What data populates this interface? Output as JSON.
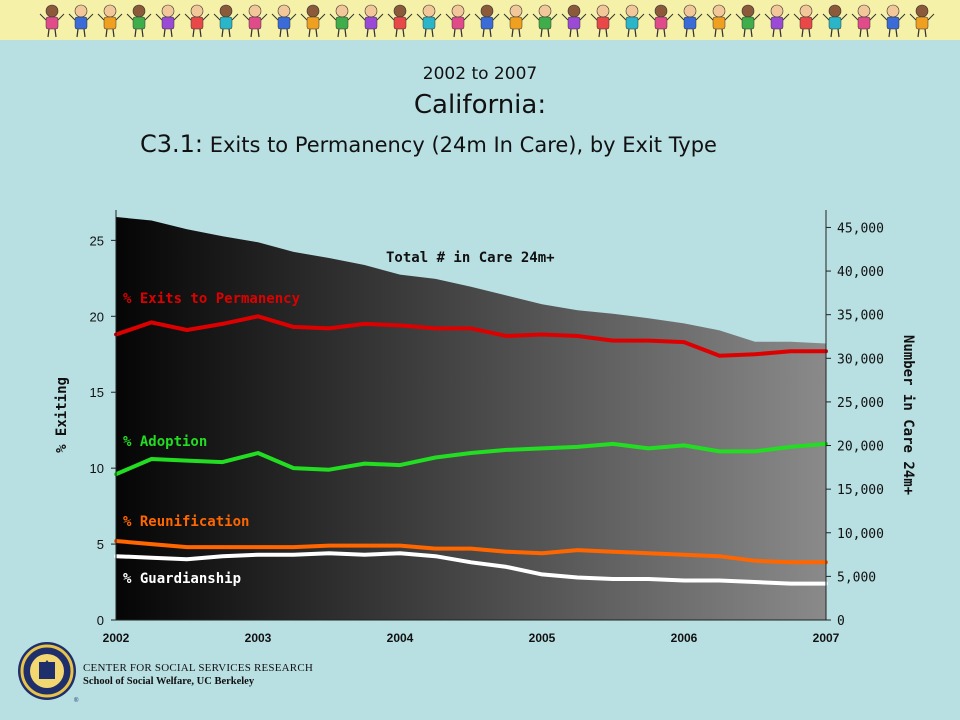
{
  "header": {
    "line1": "2002 to 2007",
    "line2": "California:",
    "line3_prefix": "C3.1:",
    "line3_rest": " Exits to Permanency (24m In Care), by Exit Type"
  },
  "footer": {
    "org": "CENTER FOR SOCIAL SERVICES RESEARCH",
    "school": "School of Social Welfare, UC Berkeley"
  },
  "colors": {
    "permanency": "#dd0000",
    "adoption": "#22dd22",
    "reunification": "#ff6600",
    "guardianship": "#ffffff",
    "banner_bg": "#f6f1a8",
    "panel_bg": "#b8dfe2"
  },
  "chart_data": {
    "type": "line",
    "subtype": "lines over shaded area",
    "ylabel": "% Exiting",
    "y2label": "Number in Care 24m+",
    "ylim": [
      0,
      27
    ],
    "y2lim": [
      0,
      47000
    ],
    "y_ticks": [
      "0",
      "5",
      "10",
      "15",
      "20",
      "25"
    ],
    "y2_ticks": [
      "0",
      "5,000",
      "10,000",
      "15,000",
      "20,000",
      "25,000",
      "30,000",
      "35,000",
      "40,000",
      "45,000"
    ],
    "x_ticks": [
      "2002",
      "2003",
      "2004",
      "2005",
      "2006",
      "2007"
    ],
    "x": [
      2002.0,
      2002.25,
      2002.5,
      2002.75,
      2003.0,
      2003.25,
      2003.5,
      2003.75,
      2004.0,
      2004.25,
      2004.5,
      2004.75,
      2005.0,
      2005.25,
      2005.5,
      2005.75,
      2006.0,
      2006.25,
      2006.5,
      2006.75,
      2007.0
    ],
    "area": {
      "name": "Total # in Care 24m+",
      "axis": "right",
      "values": [
        46200,
        45800,
        44800,
        44000,
        43300,
        42200,
        41500,
        40700,
        39600,
        39100,
        38200,
        37200,
        36200,
        35500,
        35100,
        34600,
        34000,
        33200,
        31900,
        31900,
        31700
      ]
    },
    "series": [
      {
        "name": "% Exits to Permanency",
        "key": "permanency",
        "values": [
          18.8,
          19.6,
          19.1,
          19.5,
          20.0,
          19.3,
          19.2,
          19.5,
          19.4,
          19.2,
          19.2,
          18.7,
          18.8,
          18.7,
          18.4,
          18.4,
          18.3,
          17.4,
          17.5,
          17.7,
          17.7
        ]
      },
      {
        "name": "% Adoption",
        "key": "adoption",
        "values": [
          9.6,
          10.6,
          10.5,
          10.4,
          11.0,
          10.0,
          9.9,
          10.3,
          10.2,
          10.7,
          11.0,
          11.2,
          11.3,
          11.4,
          11.6,
          11.3,
          11.5,
          11.1,
          11.1,
          11.4,
          11.6
        ]
      },
      {
        "name": "% Reunification",
        "key": "reunification",
        "values": [
          5.2,
          5.0,
          4.8,
          4.8,
          4.8,
          4.8,
          4.9,
          4.9,
          4.9,
          4.7,
          4.7,
          4.5,
          4.4,
          4.6,
          4.5,
          4.4,
          4.3,
          4.2,
          3.9,
          3.8,
          3.8
        ]
      },
      {
        "name": "% Guardianship",
        "key": "guardianship",
        "values": [
          4.2,
          4.1,
          4.0,
          4.2,
          4.3,
          4.3,
          4.4,
          4.3,
          4.4,
          4.2,
          3.8,
          3.5,
          3.0,
          2.8,
          2.7,
          2.7,
          2.6,
          2.6,
          2.5,
          2.4,
          2.4
        ]
      }
    ]
  }
}
